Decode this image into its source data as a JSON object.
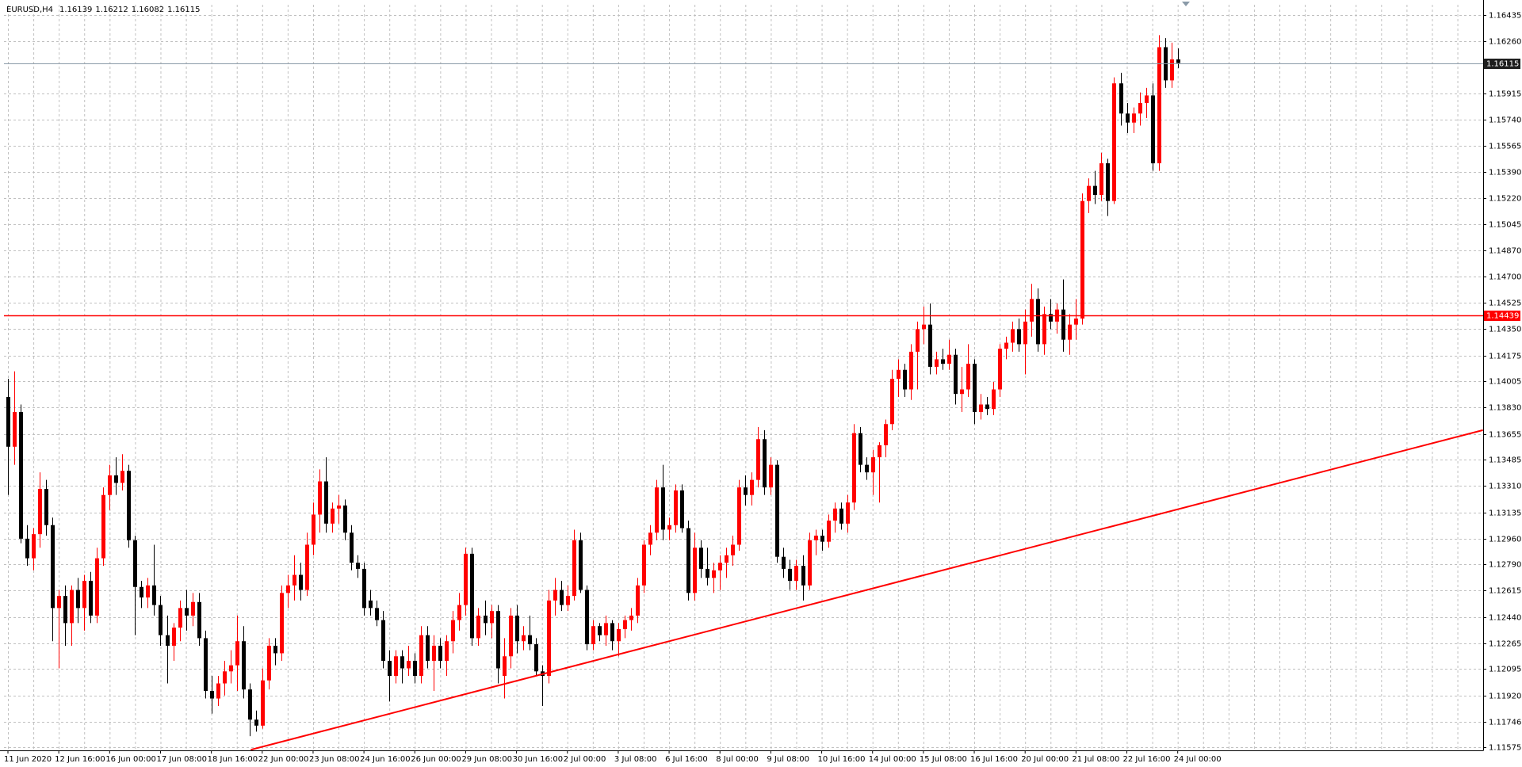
{
  "chart_data": {
    "type": "candlestick",
    "title": "EURUSD,H4",
    "up_color": "#ff0000",
    "down_color": "#000000",
    "grid": true,
    "ylim": [
      1.11556,
      1.16512
    ],
    "yticks": [
      1.16435,
      {
        "value": 1.1626,
        "label": "1.16260"
      },
      1.15915,
      {
        "value": 1.1574,
        "label": "1.15740"
      },
      1.15565,
      {
        "value": 1.1539,
        "label": "1.15390"
      },
      {
        "value": 1.1522,
        "label": "1.15220"
      },
      1.15045,
      {
        "value": 1.1487,
        "label": "1.14870"
      },
      {
        "value": 1.147,
        "label": "1.14700"
      },
      1.14525,
      {
        "value": 1.1435,
        "label": "1.14350"
      },
      1.14175,
      1.14005,
      {
        "value": 1.1383,
        "label": "1.13830"
      },
      1.13655,
      1.13485,
      {
        "value": 1.1331,
        "label": "1.13310"
      },
      1.13135,
      {
        "value": 1.1296,
        "label": "1.12960"
      },
      {
        "value": 1.1279,
        "label": "1.12790"
      },
      1.12615,
      {
        "value": 1.1244,
        "label": "1.12440"
      },
      1.12265,
      1.12095,
      {
        "value": 1.1192,
        "label": "1.11920"
      },
      1.11746,
      1.11575
    ],
    "categories": [
      "11 Jun 2020",
      null,
      null,
      null,
      null,
      null,
      null,
      null,
      "12 Jun 16:00",
      null,
      null,
      null,
      null,
      null,
      null,
      null,
      "16 Jun 00:00",
      null,
      null,
      null,
      null,
      null,
      null,
      null,
      "17 Jun 08:00",
      null,
      null,
      null,
      null,
      null,
      null,
      null,
      "18 Jun 16:00",
      null,
      null,
      null,
      null,
      null,
      null,
      null,
      "22 Jun 00:00",
      null,
      null,
      null,
      null,
      null,
      null,
      null,
      "23 Jun 08:00",
      null,
      null,
      null,
      null,
      null,
      null,
      null,
      "24 Jun 16:00",
      null,
      null,
      null,
      null,
      null,
      null,
      null,
      "26 Jun 00:00",
      null,
      null,
      null,
      null,
      null,
      null,
      null,
      "29 Jun 08:00",
      null,
      null,
      null,
      null,
      null,
      null,
      null,
      "30 Jun 16:00",
      null,
      null,
      null,
      null,
      null,
      null,
      null,
      "2 Jul 00:00",
      null,
      null,
      null,
      null,
      null,
      null,
      null,
      "3 Jul 08:00",
      null,
      null,
      null,
      null,
      null,
      null,
      null,
      "6 Jul 16:00",
      null,
      null,
      null,
      null,
      null,
      null,
      null,
      "8 Jul 00:00",
      null,
      null,
      null,
      null,
      null,
      null,
      null,
      "9 Jul 08:00",
      null,
      null,
      null,
      null,
      null,
      null,
      null,
      "10 Jul 16:00",
      null,
      null,
      null,
      null,
      null,
      null,
      null,
      "14 Jul 00:00",
      null,
      null,
      null,
      null,
      null,
      null,
      null,
      "15 Jul 08:00",
      null,
      null,
      null,
      null,
      null,
      null,
      null,
      "16 Jul 16:00",
      null,
      null,
      null,
      null,
      null,
      null,
      null,
      "20 Jul 00:00",
      null,
      null,
      null,
      null,
      null,
      null,
      null,
      "21 Jul 08:00",
      null,
      null,
      null,
      null,
      null,
      null,
      null,
      "22 Jul 16:00",
      null,
      null,
      null,
      null,
      null,
      null,
      null,
      "24 Jul 00:00"
    ],
    "ohlc": [
      [
        1.139,
        1.1402,
        1.1325,
        1.1357
      ],
      [
        1.1357,
        1.1407,
        1.1345,
        1.138
      ],
      [
        1.138,
        1.1385,
        1.1293,
        1.1296
      ],
      [
        1.1296,
        1.1305,
        1.1278,
        1.1283
      ],
      [
        1.1283,
        1.1303,
        1.1275,
        1.1299
      ],
      [
        1.1299,
        1.134,
        1.129,
        1.1329
      ],
      [
        1.1329,
        1.1335,
        1.1298,
        1.1305
      ],
      [
        1.1305,
        1.131,
        1.1228,
        1.125
      ],
      [
        1.125,
        1.1262,
        1.121,
        1.1258
      ],
      [
        1.1258,
        1.1265,
        1.1225,
        1.124
      ],
      [
        1.124,
        1.1265,
        1.1225,
        1.1262
      ],
      [
        1.1262,
        1.127,
        1.124,
        1.125
      ],
      [
        1.125,
        1.1272,
        1.1235,
        1.1268
      ],
      [
        1.1268,
        1.1274,
        1.124,
        1.1245
      ],
      [
        1.1245,
        1.129,
        1.124,
        1.1283
      ],
      [
        1.1283,
        1.133,
        1.1278,
        1.1325
      ],
      [
        1.1325,
        1.1345,
        1.1315,
        1.1338
      ],
      [
        1.1338,
        1.135,
        1.1325,
        1.1333
      ],
      [
        1.1333,
        1.1352,
        1.1328,
        1.1341
      ],
      [
        1.1341,
        1.1345,
        1.129,
        1.1295
      ],
      [
        1.1295,
        1.1298,
        1.1232,
        1.1264
      ],
      [
        1.1264,
        1.1268,
        1.125,
        1.1257
      ],
      [
        1.1257,
        1.127,
        1.125,
        1.1265
      ],
      [
        1.1265,
        1.1292,
        1.1245,
        1.1252
      ],
      [
        1.1252,
        1.1258,
        1.1225,
        1.1232
      ],
      [
        1.1232,
        1.1245,
        1.12,
        1.1225
      ],
      [
        1.1225,
        1.124,
        1.1215,
        1.1237
      ],
      [
        1.1237,
        1.1255,
        1.1228,
        1.125
      ],
      [
        1.125,
        1.1262,
        1.1235,
        1.1245
      ],
      [
        1.1245,
        1.126,
        1.1238,
        1.1254
      ],
      [
        1.1254,
        1.126,
        1.1225,
        1.123
      ],
      [
        1.123,
        1.1235,
        1.119,
        1.1195
      ],
      [
        1.1195,
        1.1205,
        1.118,
        1.119
      ],
      [
        1.119,
        1.1205,
        1.1185,
        1.12
      ],
      [
        1.12,
        1.1215,
        1.1192,
        1.1208
      ],
      [
        1.1208,
        1.1222,
        1.12,
        1.1212
      ],
      [
        1.1212,
        1.1245,
        1.1195,
        1.1228
      ],
      [
        1.1228,
        1.1238,
        1.119,
        1.1196
      ],
      [
        1.1196,
        1.12,
        1.1165,
        1.1176
      ],
      [
        1.1176,
        1.1182,
        1.1168,
        1.1172
      ],
      [
        1.1172,
        1.121,
        1.117,
        1.1202
      ],
      [
        1.1202,
        1.123,
        1.1196,
        1.1225
      ],
      [
        1.1225,
        1.123,
        1.1212,
        1.122
      ],
      [
        1.122,
        1.1265,
        1.1215,
        1.126
      ],
      [
        1.126,
        1.1272,
        1.125,
        1.1265
      ],
      [
        1.1265,
        1.1285,
        1.1255,
        1.1272
      ],
      [
        1.1272,
        1.128,
        1.1255,
        1.1262
      ],
      [
        1.1262,
        1.13,
        1.1258,
        1.1292
      ],
      [
        1.1292,
        1.132,
        1.1285,
        1.1312
      ],
      [
        1.1312,
        1.1342,
        1.13,
        1.1334
      ],
      [
        1.1334,
        1.135,
        1.13,
        1.1306
      ],
      [
        1.1306,
        1.132,
        1.13,
        1.1316
      ],
      [
        1.1316,
        1.1325,
        1.1306,
        1.1318
      ],
      [
        1.1318,
        1.1322,
        1.1295,
        1.13
      ],
      [
        1.13,
        1.1305,
        1.1275,
        1.128
      ],
      [
        1.128,
        1.1285,
        1.127,
        1.1276
      ],
      [
        1.1276,
        1.128,
        1.1245,
        1.125
      ],
      [
        1.1255,
        1.1262,
        1.1245,
        1.125
      ],
      [
        1.125,
        1.1255,
        1.1238,
        1.1242
      ],
      [
        1.1242,
        1.1248,
        1.121,
        1.1215
      ],
      [
        1.1215,
        1.1222,
        1.1188,
        1.1205
      ],
      [
        1.1205,
        1.1222,
        1.12,
        1.1218
      ],
      [
        1.1218,
        1.1222,
        1.12,
        1.121
      ],
      [
        1.121,
        1.1225,
        1.1205,
        1.1215
      ],
      [
        1.1215,
        1.122,
        1.12,
        1.1205
      ],
      [
        1.1205,
        1.1238,
        1.12,
        1.1232
      ],
      [
        1.1232,
        1.1238,
        1.121,
        1.1215
      ],
      [
        1.1215,
        1.1232,
        1.1195,
        1.1225
      ],
      [
        1.1225,
        1.123,
        1.121,
        1.1215
      ],
      [
        1.1215,
        1.1232,
        1.1205,
        1.1228
      ],
      [
        1.1228,
        1.1248,
        1.122,
        1.1242
      ],
      [
        1.1242,
        1.126,
        1.1235,
        1.1252
      ],
      [
        1.1252,
        1.129,
        1.1245,
        1.1286
      ],
      [
        1.1286,
        1.129,
        1.1225,
        1.123
      ],
      [
        1.123,
        1.125,
        1.1225,
        1.1245
      ],
      [
        1.1245,
        1.1255,
        1.1232,
        1.124
      ],
      [
        1.124,
        1.1252,
        1.123,
        1.1248
      ],
      [
        1.1248,
        1.1252,
        1.12,
        1.121
      ],
      [
        1.1205,
        1.123,
        1.119,
        1.1218
      ],
      [
        1.1218,
        1.125,
        1.121,
        1.1245
      ],
      [
        1.1245,
        1.1252,
        1.122,
        1.1228
      ],
      [
        1.1228,
        1.1238,
        1.1222,
        1.1232
      ],
      [
        1.1232,
        1.1245,
        1.1222,
        1.1226
      ],
      [
        1.1226,
        1.123,
        1.1205,
        1.1208
      ],
      [
        1.1208,
        1.1212,
        1.1185,
        1.1205
      ],
      [
        1.1205,
        1.1262,
        1.12,
        1.1255
      ],
      [
        1.1255,
        1.127,
        1.1245,
        1.1262
      ],
      [
        1.1262,
        1.1268,
        1.1248,
        1.1252
      ],
      [
        1.1252,
        1.1265,
        1.1248,
        1.1258
      ],
      [
        1.1258,
        1.1302,
        1.1255,
        1.1295
      ],
      [
        1.1295,
        1.13,
        1.126,
        1.1262
      ],
      [
        1.1262,
        1.1265,
        1.1222,
        1.1226
      ],
      [
        1.1226,
        1.1242,
        1.1222,
        1.1238
      ],
      [
        1.1238,
        1.124,
        1.1228,
        1.1232
      ],
      [
        1.1232,
        1.1245,
        1.1225,
        1.124
      ],
      [
        1.124,
        1.1242,
        1.1222,
        1.1228
      ],
      [
        1.1228,
        1.124,
        1.1218,
        1.1236
      ],
      [
        1.1236,
        1.1245,
        1.123,
        1.1242
      ],
      [
        1.1242,
        1.125,
        1.1235,
        1.1245
      ],
      [
        1.1245,
        1.127,
        1.124,
        1.1265
      ],
      [
        1.1265,
        1.1295,
        1.126,
        1.1292
      ],
      [
        1.1292,
        1.1305,
        1.1285,
        1.13
      ],
      [
        1.13,
        1.1335,
        1.1295,
        1.133
      ],
      [
        1.133,
        1.1345,
        1.1295,
        1.1302
      ],
      [
        1.1302,
        1.131,
        1.1295,
        1.1305
      ],
      [
        1.1305,
        1.1332,
        1.13,
        1.1328
      ],
      [
        1.1328,
        1.1332,
        1.13,
        1.1303
      ],
      [
        1.1303,
        1.1308,
        1.1255,
        1.126
      ],
      [
        1.126,
        1.13,
        1.1255,
        1.129
      ],
      [
        1.129,
        1.1295,
        1.127,
        1.1276
      ],
      [
        1.1276,
        1.129,
        1.1265,
        1.127
      ],
      [
        1.127,
        1.128,
        1.126,
        1.1275
      ],
      [
        1.1275,
        1.1285,
        1.1262,
        1.128
      ],
      [
        1.128,
        1.129,
        1.127,
        1.1285
      ],
      [
        1.1285,
        1.1298,
        1.1278,
        1.1292
      ],
      [
        1.1292,
        1.1335,
        1.1288,
        1.133
      ],
      [
        1.133,
        1.1338,
        1.1318,
        1.1325
      ],
      [
        1.1325,
        1.134,
        1.1318,
        1.1335
      ],
      [
        1.1335,
        1.137,
        1.133,
        1.1362
      ],
      [
        1.1362,
        1.1368,
        1.1325,
        1.133
      ],
      [
        1.133,
        1.135,
        1.1325,
        1.1345
      ],
      [
        1.1345,
        1.1348,
        1.128,
        1.1284
      ],
      [
        1.1284,
        1.129,
        1.127,
        1.1276
      ],
      [
        1.1276,
        1.1282,
        1.1262,
        1.1268
      ],
      [
        1.1268,
        1.1282,
        1.1262,
        1.1278
      ],
      [
        1.1278,
        1.1285,
        1.1255,
        1.1265
      ],
      [
        1.1265,
        1.13,
        1.1262,
        1.1295
      ],
      [
        1.1295,
        1.1302,
        1.1285,
        1.1298
      ],
      [
        1.1298,
        1.1302,
        1.1288,
        1.1294
      ],
      [
        1.1294,
        1.1312,
        1.129,
        1.1308
      ],
      [
        1.1308,
        1.132,
        1.13,
        1.1316
      ],
      [
        1.1316,
        1.132,
        1.1302,
        1.1306
      ],
      [
        1.1306,
        1.1325,
        1.13,
        1.132
      ],
      [
        1.132,
        1.1372,
        1.1315,
        1.1366
      ],
      [
        1.1366,
        1.137,
        1.134,
        1.1345
      ],
      [
        1.1345,
        1.135,
        1.1335,
        1.134
      ],
      [
        1.134,
        1.1355,
        1.1325,
        1.135
      ],
      [
        1.135,
        1.136,
        1.132,
        1.1358
      ],
      [
        1.1358,
        1.1375,
        1.135,
        1.1372
      ],
      [
        1.1372,
        1.1408,
        1.1368,
        1.1402
      ],
      [
        1.1402,
        1.1415,
        1.139,
        1.1408
      ],
      [
        1.1408,
        1.1412,
        1.139,
        1.1395
      ],
      [
        1.1395,
        1.1425,
        1.1388,
        1.142
      ],
      [
        1.142,
        1.144,
        1.1395,
        1.1435
      ],
      [
        1.1435,
        1.145,
        1.1425,
        1.1438
      ],
      [
        1.1438,
        1.1452,
        1.1405,
        1.141
      ],
      [
        1.141,
        1.142,
        1.1405,
        1.1415
      ],
      [
        1.1415,
        1.1422,
        1.1408,
        1.1412
      ],
      [
        1.1412,
        1.1428,
        1.1408,
        1.1418
      ],
      [
        1.1418,
        1.1422,
        1.1385,
        1.1392
      ],
      [
        1.1392,
        1.141,
        1.138,
        1.1395
      ],
      [
        1.1395,
        1.1425,
        1.139,
        1.1412
      ],
      [
        1.1412,
        1.1415,
        1.1372,
        1.138
      ],
      [
        1.138,
        1.1392,
        1.1375,
        1.1385
      ],
      [
        1.1385,
        1.139,
        1.1378,
        1.1382
      ],
      [
        1.1382,
        1.14,
        1.1378,
        1.1395
      ],
      [
        1.1395,
        1.1425,
        1.139,
        1.1422
      ],
      [
        1.1422,
        1.143,
        1.1415,
        1.1426
      ],
      [
        1.1426,
        1.144,
        1.142,
        1.1435
      ],
      [
        1.1435,
        1.1442,
        1.142,
        1.1425
      ],
      [
        1.1425,
        1.1448,
        1.1405,
        1.144
      ],
      [
        1.144,
        1.1465,
        1.143,
        1.1455
      ],
      [
        1.1455,
        1.1462,
        1.142,
        1.1425
      ],
      [
        1.1425,
        1.145,
        1.1418,
        1.1445
      ],
      [
        1.1445,
        1.1455,
        1.1435,
        1.144
      ],
      [
        1.144,
        1.1452,
        1.1432,
        1.1448
      ],
      [
        1.1448,
        1.1468,
        1.142,
        1.1428
      ],
      [
        1.1428,
        1.1445,
        1.1418,
        1.1438
      ],
      [
        1.1438,
        1.1455,
        1.1428,
        1.1442
      ],
      [
        1.1442,
        1.1525,
        1.1438,
        1.152
      ],
      [
        1.152,
        1.1535,
        1.1512,
        1.153
      ],
      [
        1.153,
        1.154,
        1.1518,
        1.1524
      ],
      [
        1.1524,
        1.1552,
        1.152,
        1.1545
      ],
      [
        1.1545,
        1.1548,
        1.151,
        1.152
      ],
      [
        1.152,
        1.1602,
        1.1518,
        1.1598
      ],
      [
        1.1598,
        1.1605,
        1.157,
        1.1578
      ],
      [
        1.1578,
        1.1585,
        1.1565,
        1.1572
      ],
      [
        1.1572,
        1.1582,
        1.1565,
        1.1578
      ],
      [
        1.1578,
        1.1592,
        1.157,
        1.1585
      ],
      [
        1.1585,
        1.1595,
        1.1575,
        1.159
      ],
      [
        1.159,
        1.1598,
        1.154,
        1.1545
      ],
      [
        1.1545,
        1.163,
        1.154,
        1.1622
      ],
      [
        1.1622,
        1.1628,
        1.1595,
        1.16
      ],
      [
        1.16,
        1.1625,
        1.1595,
        1.16139
      ],
      [
        1.16139,
        1.16212,
        1.16082,
        1.16115
      ]
    ],
    "hlines": [
      {
        "value": 1.14439,
        "color": "#ff0000"
      }
    ],
    "trendline": {
      "x": [
        38.2,
        232
      ],
      "values": [
        1.1156,
        1.1368
      ],
      "color": "#ff0000"
    }
  }
}
